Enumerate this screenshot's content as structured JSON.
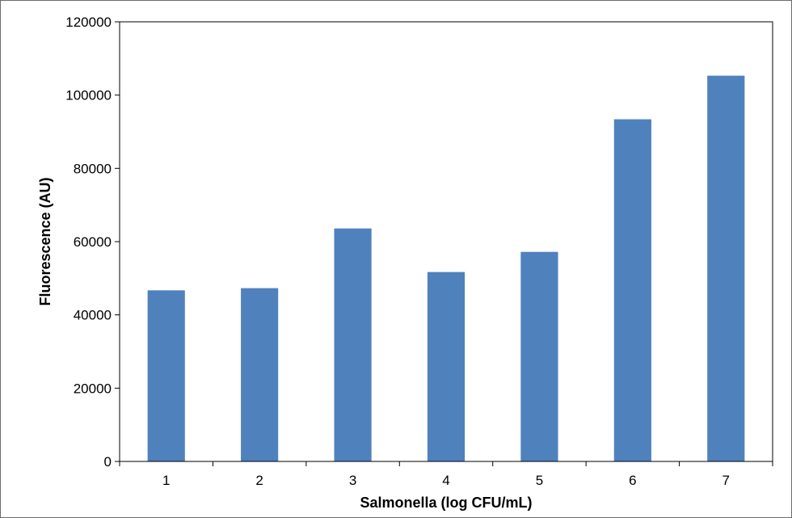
{
  "chart_data": {
    "type": "bar",
    "title": "",
    "xlabel": "Salmonella (log CFU/mL)",
    "ylabel": "Fluorescence (AU)",
    "categories": [
      "1",
      "2",
      "3",
      "4",
      "5",
      "6",
      "7"
    ],
    "values": [
      46700,
      47300,
      63600,
      51700,
      57200,
      93400,
      105300
    ],
    "ylim": [
      0,
      120000
    ],
    "yticks": [
      "0",
      "20000",
      "40000",
      "60000",
      "80000",
      "100000",
      "120000"
    ],
    "grid": false,
    "legend": "none",
    "bar_color": "#4f81bd"
  }
}
